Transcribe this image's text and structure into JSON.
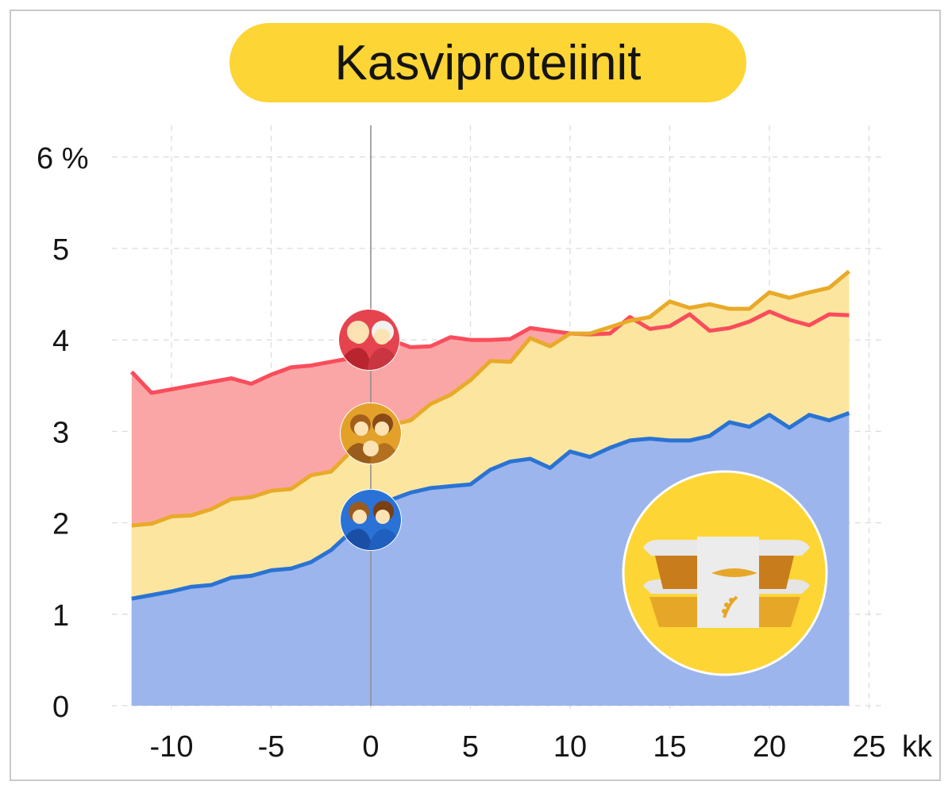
{
  "chart_data": {
    "type": "area",
    "title": "Kasviproteiinit",
    "x_unit_label": "kk",
    "y_unit_label": "%",
    "xlim": [
      -13,
      25
    ],
    "ylim": [
      0,
      6
    ],
    "x_ticks": [
      "-10",
      "-5",
      "0",
      "5",
      "10",
      "15",
      "20",
      "25"
    ],
    "y_ticks": [
      "0",
      "1",
      "2",
      "3",
      "4",
      "5",
      "6 %"
    ],
    "grid": true,
    "marker_x": 0,
    "x": [
      -12,
      -11,
      -10,
      -9,
      -8,
      -7,
      -6,
      -5,
      -4,
      -3,
      -2,
      -1,
      0,
      1,
      2,
      3,
      4,
      5,
      6,
      7,
      8,
      9,
      10,
      11,
      12,
      13,
      14,
      15,
      16,
      17,
      18,
      19,
      20,
      21,
      22,
      23,
      24
    ],
    "series": [
      {
        "color": "#fa4d5c",
        "fill": "#fba6a6",
        "icon": "elderly-couple-icon",
        "values": [
          3.65,
          3.42,
          3.46,
          3.5,
          3.54,
          3.58,
          3.52,
          3.62,
          3.7,
          3.72,
          3.76,
          3.8,
          3.95,
          4.0,
          3.92,
          3.93,
          4.03,
          4.0,
          4.0,
          4.01,
          4.13,
          4.1,
          4.07,
          4.06,
          4.07,
          4.25,
          4.12,
          4.15,
          4.28,
          4.1,
          4.13,
          4.2,
          4.31,
          4.22,
          4.16,
          4.28,
          4.27
        ]
      },
      {
        "color": "#e8aa29",
        "fill": "#fce69f",
        "icon": "family-icon",
        "values": [
          1.97,
          1.99,
          2.07,
          2.08,
          2.15,
          2.26,
          2.28,
          2.35,
          2.37,
          2.52,
          2.56,
          2.78,
          2.9,
          3.07,
          3.12,
          3.3,
          3.4,
          3.56,
          3.77,
          3.76,
          4.02,
          3.93,
          4.07,
          4.07,
          4.14,
          4.21,
          4.25,
          4.42,
          4.35,
          4.39,
          4.34,
          4.34,
          4.52,
          4.46,
          4.52,
          4.57,
          4.75
        ]
      },
      {
        "color": "#2a73d4",
        "fill": "#9cb5ec",
        "icon": "young-couple-icon",
        "values": [
          1.17,
          1.21,
          1.25,
          1.3,
          1.32,
          1.4,
          1.42,
          1.48,
          1.5,
          1.57,
          1.7,
          1.9,
          2.1,
          2.25,
          2.33,
          2.38,
          2.4,
          2.42,
          2.58,
          2.67,
          2.7,
          2.6,
          2.78,
          2.72,
          2.82,
          2.9,
          2.92,
          2.9,
          2.9,
          2.95,
          3.1,
          3.05,
          3.18,
          3.04,
          3.18,
          3.12,
          3.2
        ]
      }
    ]
  },
  "colors": {
    "title_pill": "#fdd535",
    "product_circle": "#fdd535",
    "grid": "#dcdcdc",
    "frame": "#c9c9c9"
  },
  "product_icon": "plant-protein-package-icon"
}
